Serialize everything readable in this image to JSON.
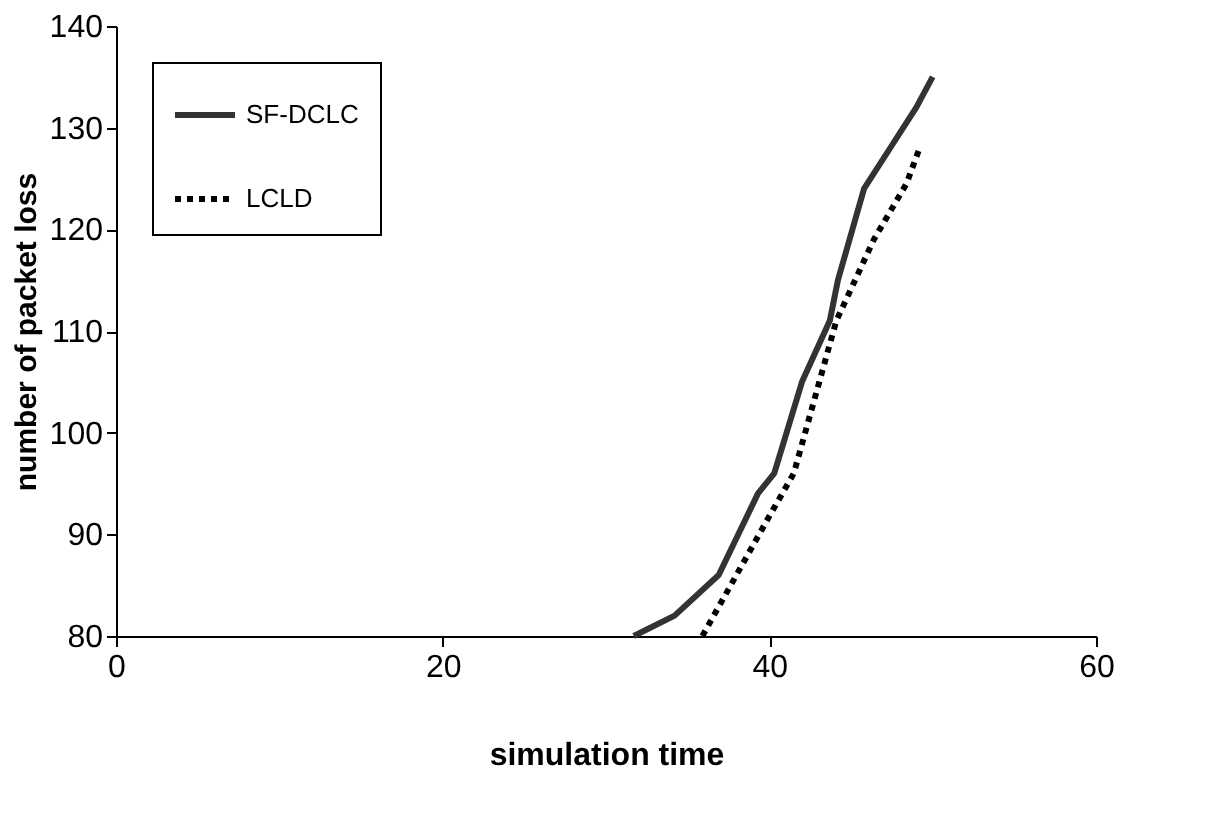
{
  "chart_data": {
    "type": "line",
    "xlabel": "simulation time",
    "ylabel": "number of packet loss",
    "xlim": [
      0,
      60
    ],
    "xticks": [
      0,
      20,
      40,
      60
    ],
    "ylim": [
      80,
      140
    ],
    "yticks": [
      80,
      90,
      100,
      110,
      120,
      130,
      140
    ],
    "grid": false,
    "legend": "top left",
    "marker": "none",
    "series": [
      {
        "name": "SF-DCLC",
        "color": "#333333",
        "line_style": "solid",
        "x": [
          31.7,
          34.2,
          36.9,
          39.3,
          40.3,
          42.0,
          43.7,
          44.2,
          45.8,
          47.4,
          49.0,
          50.0
        ],
        "values": [
          80,
          82,
          86,
          94,
          96,
          105,
          111,
          115,
          124,
          128,
          132,
          135
        ]
      },
      {
        "name": "LCLD",
        "color": "#000000",
        "line_style": "dotted",
        "x": [
          35.9,
          39.9,
          41.5,
          44.1,
          46.4,
          48.4,
          49.2
        ],
        "values": [
          80,
          91.5,
          96,
          111,
          119,
          124.5,
          128
        ]
      }
    ]
  }
}
